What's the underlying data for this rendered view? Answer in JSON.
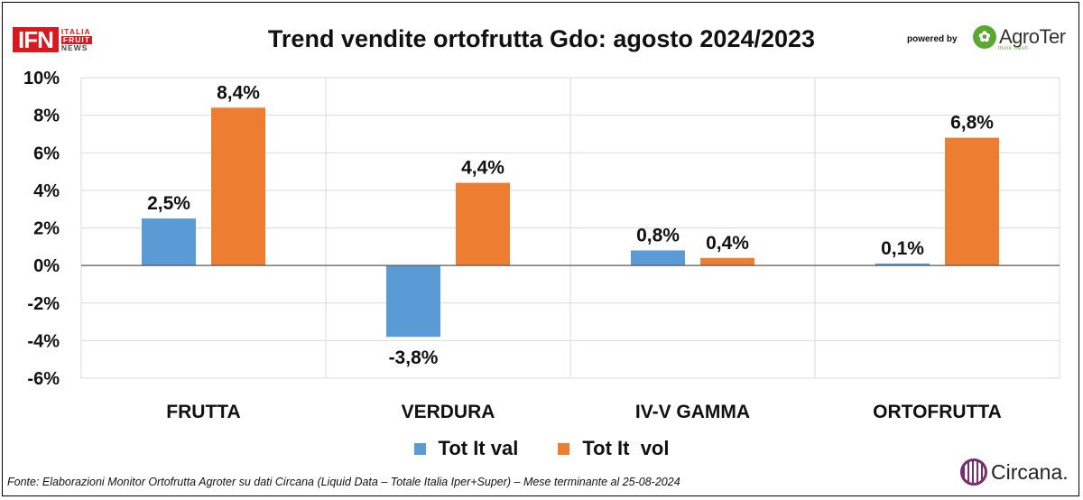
{
  "header": {
    "logo_ifn": "IFN",
    "logo_sub_1": "ITALIA",
    "logo_sub_2": "FRUIT",
    "logo_sub_3": "NEWS",
    "title": "Trend vendite ortofrutta Gdo: agosto 2024/2023",
    "powered_by": "powered by",
    "agroter_logo": "AgroTer",
    "agroter_tagline": "think fresh"
  },
  "chart_data": {
    "type": "bar",
    "categories": [
      "FRUTTA",
      "VERDURA",
      "IV-V GAMMA",
      "ORTOFRUTTA"
    ],
    "series": [
      {
        "name": "Tot It val",
        "values": [
          2.5,
          -3.8,
          0.8,
          0.1
        ],
        "labels": [
          "2,5%",
          "-3,8%",
          "0,8%",
          "0,1%"
        ],
        "color": "#5b9bd5"
      },
      {
        "name": "Tot It  vol",
        "values": [
          8.4,
          4.4,
          0.4,
          6.8
        ],
        "labels": [
          "8,4%",
          "4,4%",
          "0,4%",
          "6,8%"
        ],
        "color": "#ed7d31"
      }
    ],
    "ylim": [
      -6,
      10
    ],
    "yticks": [
      10,
      8,
      6,
      4,
      2,
      0,
      -2,
      -4,
      -6
    ],
    "ytick_labels": [
      "10%",
      "8%",
      "6%",
      "4%",
      "2%",
      "0%",
      "-2%",
      "-4%",
      "-6%"
    ],
    "grid": "vertical category separators",
    "legend_position": "bottom"
  },
  "footer": {
    "source": "Fonte: Elaborazioni Monitor Ortofrutta Agroter su dati Circana (Liquid Data – Totale Italia Iper+Super) – Mese terminante al 25-08-2024",
    "circana_logo": "Circana."
  }
}
